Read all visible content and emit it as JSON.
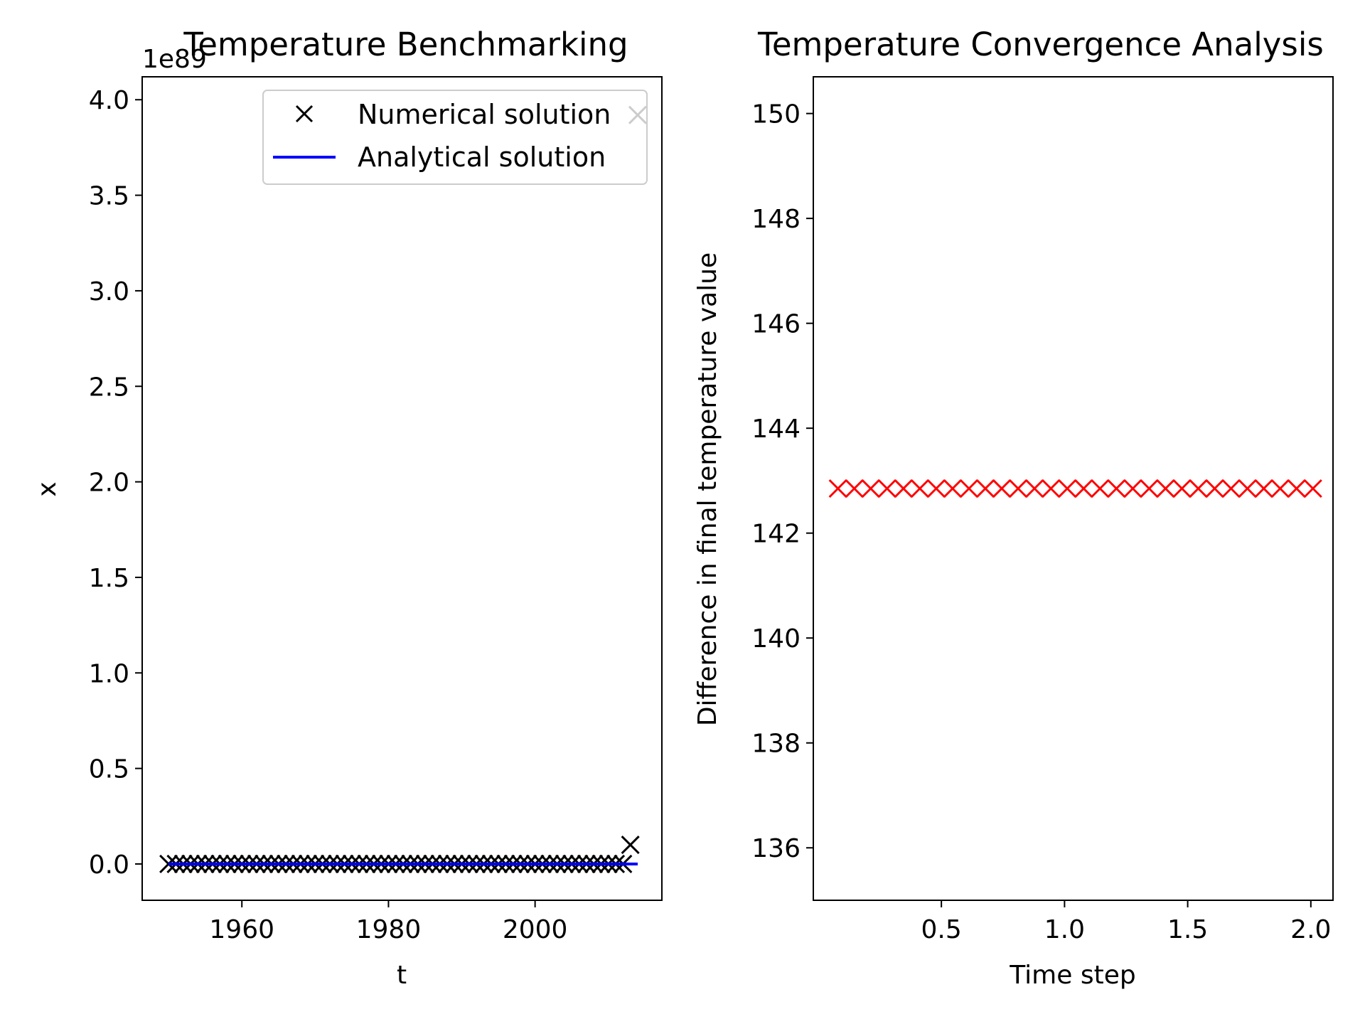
{
  "chart_data": [
    {
      "type": "line",
      "title": "Temperature Benchmarking",
      "xlabel": "t",
      "ylabel": "x",
      "offset_label": "1e89",
      "xlim": [
        1946.4,
        2017.3
      ],
      "ylim": [
        -0.19,
        4.12
      ],
      "xticks": [
        1960,
        1980,
        2000
      ],
      "xtick_labels": [
        "1960",
        "1980",
        "2000"
      ],
      "yticks": [
        0.0,
        0.5,
        1.0,
        1.5,
        2.0,
        2.5,
        3.0,
        3.5,
        4.0
      ],
      "ytick_labels": [
        "0.0",
        "0.5",
        "1.0",
        "1.5",
        "2.0",
        "2.5",
        "3.0",
        "3.5",
        "4.0"
      ],
      "legend": {
        "placement": "upper right",
        "entries": [
          "Numerical solution",
          "Analytical solution"
        ]
      },
      "series": [
        {
          "name": "Numerical solution",
          "marker": "x",
          "color": "#000000",
          "x_start": 1950,
          "x_step": 1,
          "y_scaled_1e89": [
            0,
            0,
            0,
            0,
            0,
            0,
            0,
            0,
            0,
            0,
            0,
            0,
            0,
            0,
            0,
            0,
            0,
            0,
            0,
            0,
            0,
            0,
            0,
            0,
            0,
            0,
            0,
            0,
            0,
            0,
            0,
            0,
            0,
            0,
            0,
            0,
            0,
            0,
            0,
            0,
            0,
            0,
            0,
            0,
            0,
            0,
            0,
            0,
            0,
            0,
            0,
            0,
            0,
            0,
            0,
            0,
            0,
            0,
            0,
            0,
            0,
            0,
            0,
            0.1,
            3.92
          ]
        },
        {
          "name": "Analytical solution",
          "line": "solid",
          "color": "#0000ff",
          "x": [
            1950,
            2014
          ],
          "y_scaled_1e89": [
            0,
            0
          ]
        }
      ]
    },
    {
      "type": "scatter",
      "title": "Temperature Convergence Analysis",
      "xlabel": "Time step",
      "ylabel": "Difference in final temperature value",
      "xlim": [
        -0.02,
        2.09
      ],
      "ylim": [
        135.0,
        150.7
      ],
      "xticks": [
        0.5,
        1.0,
        1.5,
        2.0
      ],
      "xtick_labels": [
        "0.5",
        "1.0",
        "1.5",
        "2.0"
      ],
      "yticks": [
        136,
        138,
        140,
        142,
        144,
        146,
        148,
        150
      ],
      "ytick_labels": [
        "136",
        "138",
        "140",
        "142",
        "144",
        "146",
        "148",
        "150"
      ],
      "series": [
        {
          "marker": "x",
          "color": "#ff0000",
          "x_start": 0.08,
          "x_step": 0.0665,
          "count": 30,
          "y_constant": 142.85
        }
      ]
    }
  ]
}
